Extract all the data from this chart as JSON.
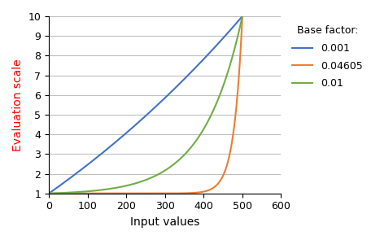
{
  "xlabel": "Input values",
  "ylabel": "Evaluation scale",
  "xlim": [
    0,
    600
  ],
  "ylim": [
    1,
    10
  ],
  "xticks": [
    0,
    100,
    200,
    300,
    400,
    500,
    600
  ],
  "yticks": [
    1,
    2,
    3,
    4,
    5,
    6,
    7,
    8,
    9,
    10
  ],
  "x_max": 500,
  "y_min": 1,
  "y_max": 10,
  "base_factors": [
    0.001,
    0.04605,
    0.01
  ],
  "colors": [
    "#4472C4",
    "#ED7D31",
    "#70AD47"
  ],
  "labels": [
    "0.001",
    "0.04605",
    "0.01"
  ],
  "legend_title": "Base factor:",
  "grid_color": "#BFBFBF",
  "ylabel_color": "#FF0000",
  "legend_fontsize": 9,
  "axis_label_fontsize": 10,
  "tick_fontsize": 9,
  "linewidth": 1.5
}
